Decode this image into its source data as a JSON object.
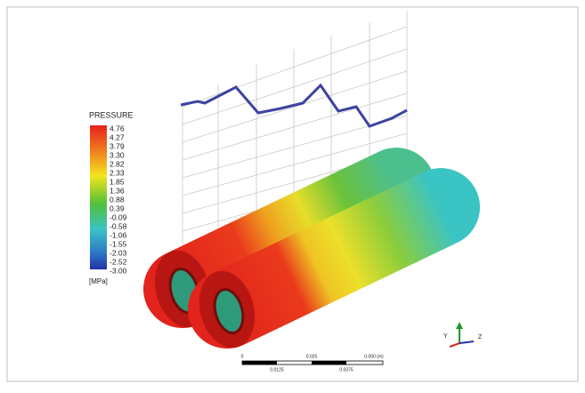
{
  "legend": {
    "title": "PRESSURE",
    "labels": [
      "4.76",
      "4.27",
      "3.79",
      "3.30",
      "2.82",
      "2.33",
      "1.85",
      "1.36",
      "0.88",
      "0.39",
      "-0.09",
      "-0.58",
      "-1.06",
      "-1.55",
      "-2.03",
      "-2.52",
      "-3.00"
    ],
    "unit": "[MPa]"
  },
  "scale_bar": {
    "top_labels": [
      "0",
      "0.025",
      "0.050 (m)"
    ],
    "bottom_labels": [
      "0.0125",
      "0.0375"
    ]
  },
  "triad": {
    "labels": [
      "Y",
      "Z"
    ]
  }
}
